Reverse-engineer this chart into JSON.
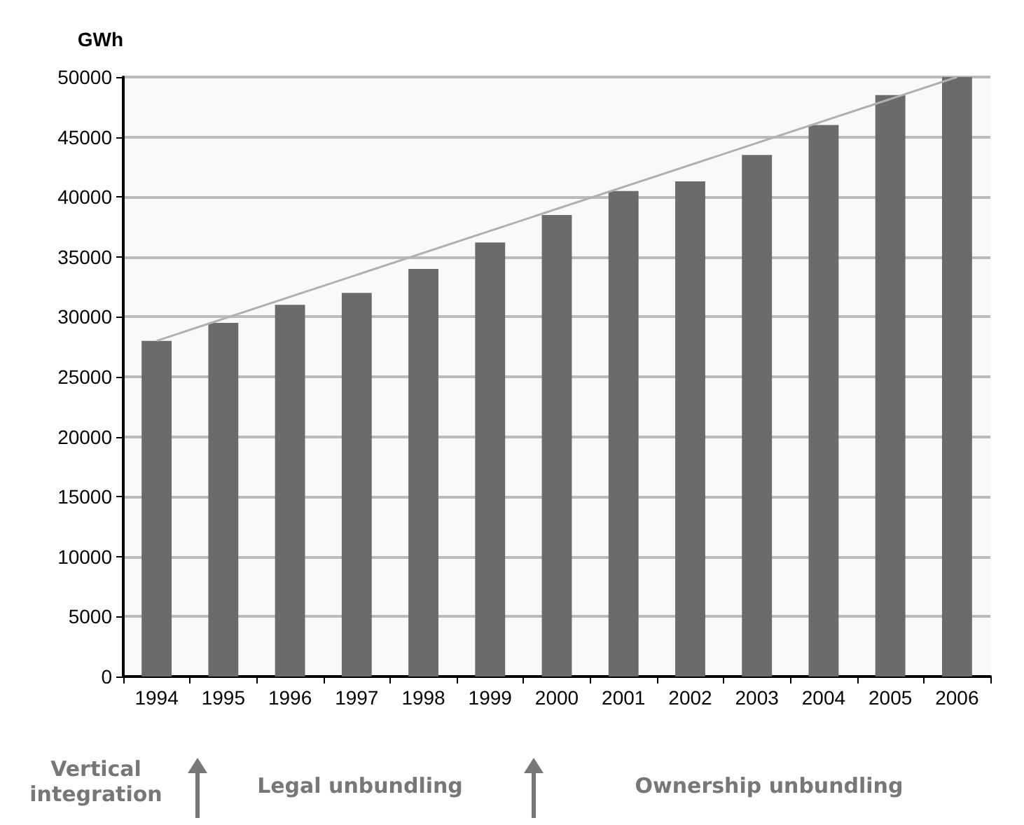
{
  "chart_data": {
    "type": "bar",
    "ylabel": "GWh",
    "categories": [
      "1994",
      "1995",
      "1996",
      "1997",
      "1998",
      "1999",
      "2000",
      "2001",
      "2002",
      "2003",
      "2004",
      "2005",
      "2006"
    ],
    "series": [
      {
        "color": "#6b6b6b",
        "values": [
          28000,
          29500,
          31000,
          32000,
          34000,
          36200,
          38500,
          40500,
          41300,
          43500,
          46000,
          48500,
          50000
        ]
      },
      {
        "type": "line",
        "color": "#b0b0b0",
        "values": [
          28000,
          null,
          null,
          null,
          null,
          null,
          null,
          null,
          null,
          null,
          null,
          null,
          50000
        ]
      }
    ],
    "ylim": [
      0,
      50000
    ],
    "yticks": [
      0,
      5000,
      10000,
      15000,
      20000,
      25000,
      30000,
      35000,
      40000,
      45000,
      50000
    ],
    "grid": "y",
    "marker": "none",
    "annotations": [
      "Vertical integration",
      "Legal unbundling",
      "Ownership unbundling"
    ]
  }
}
